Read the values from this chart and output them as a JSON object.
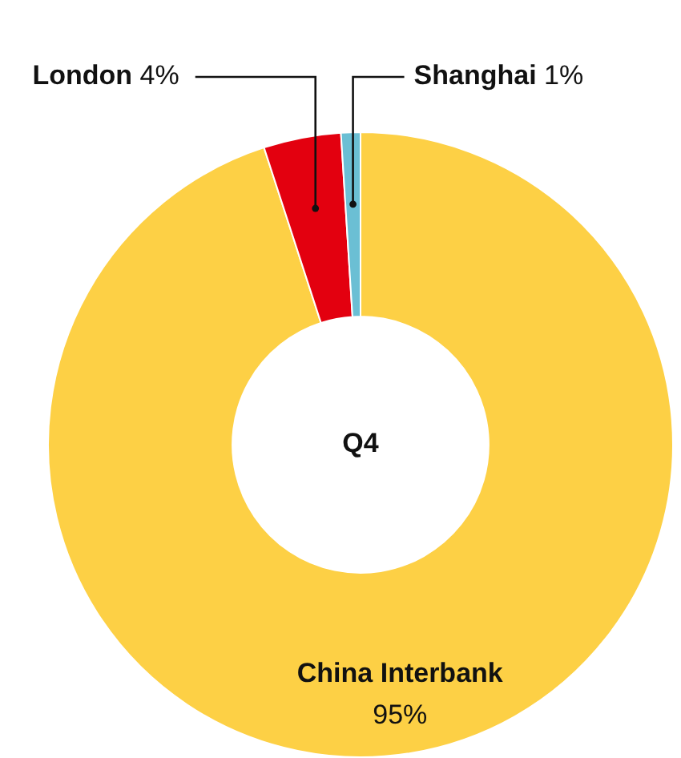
{
  "chart_data": {
    "type": "donut",
    "title": "Q4",
    "categories": [
      "China Interbank",
      "London",
      "Shanghai"
    ],
    "values": [
      95,
      4,
      1
    ],
    "value_labels": [
      "95%",
      "4%",
      "1%"
    ],
    "colors": [
      "#fdd045",
      "#e3000f",
      "#6bbfd4"
    ],
    "legend": false
  }
}
